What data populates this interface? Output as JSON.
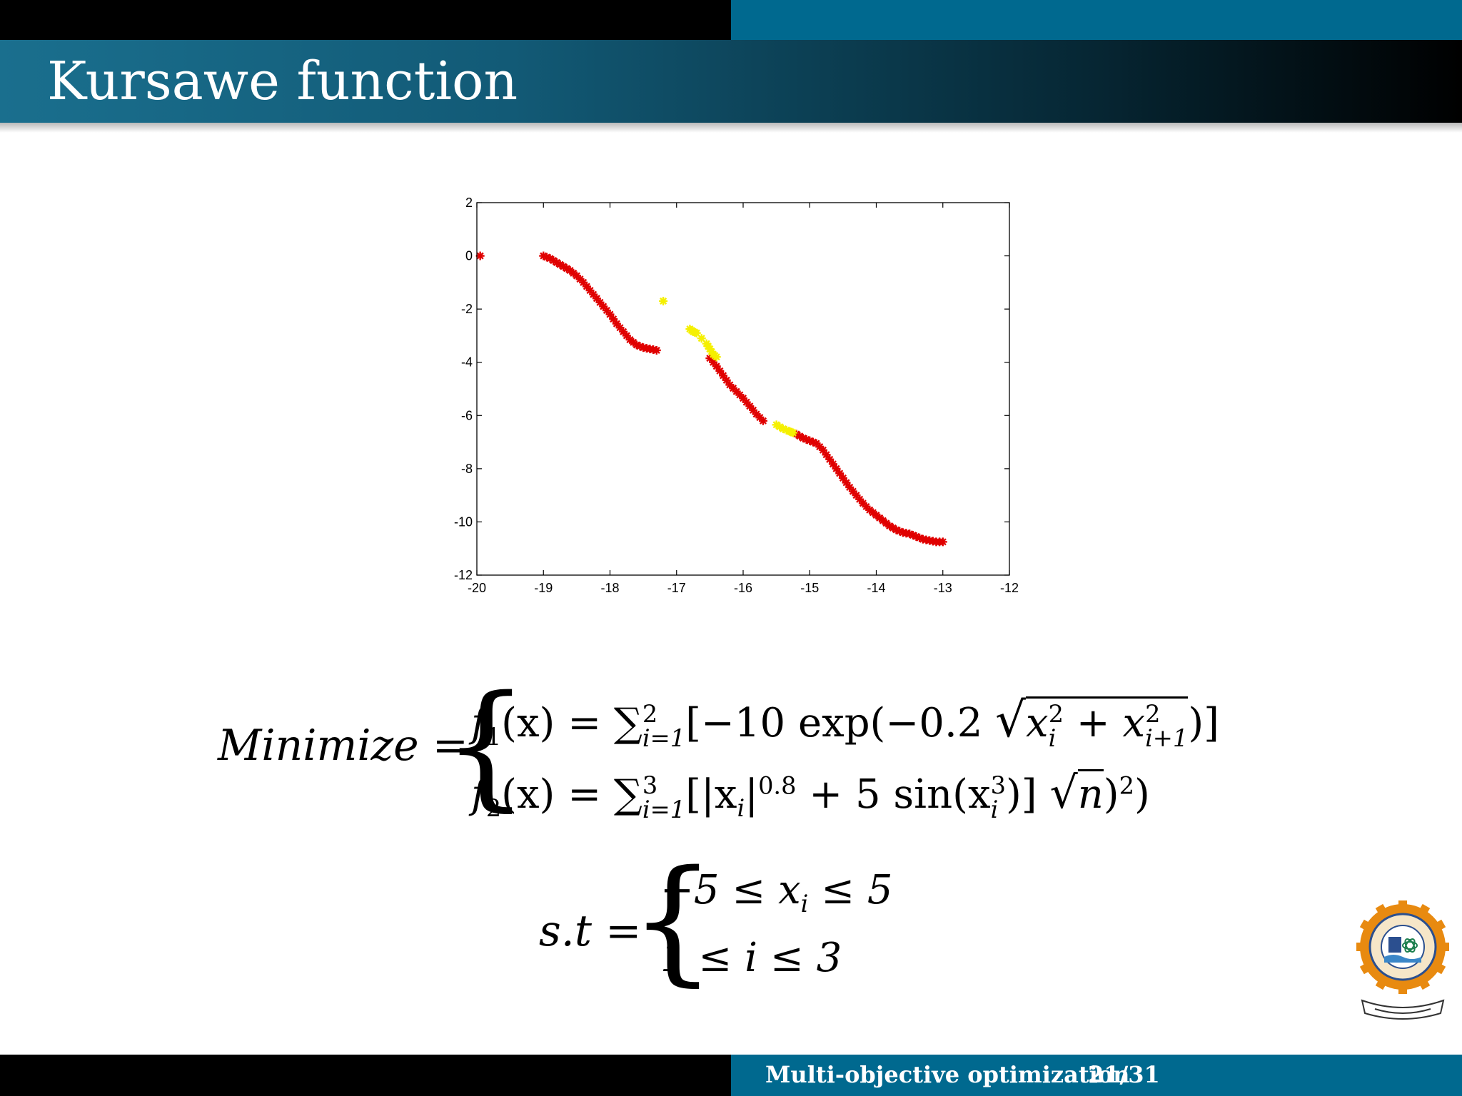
{
  "slide": {
    "title": "Kursawe function",
    "footer_title": "Multi-objective optimization",
    "footer_page": "21/31"
  },
  "colors": {
    "header_teal": "#00698f",
    "header_black": "#000000",
    "pareto_red": "#e00000",
    "pareto_yellow": "#f5f000"
  },
  "chart_data": {
    "type": "scatter",
    "title": "",
    "xlabel": "",
    "ylabel": "",
    "xlim": [
      -20,
      -12
    ],
    "ylim": [
      -12,
      2
    ],
    "xticks": [
      -20,
      -19,
      -18,
      -17,
      -16,
      -15,
      -14,
      -13,
      -12
    ],
    "yticks": [
      2,
      0,
      -2,
      -4,
      -6,
      -8,
      -10,
      -12
    ],
    "marker": "asterisk",
    "grid": false,
    "series": [
      {
        "color": "#e00000",
        "points": [
          [
            -19.95,
            0.0
          ],
          [
            -19.0,
            0.0
          ],
          [
            -18.9,
            -0.1
          ],
          [
            -18.8,
            -0.25
          ],
          [
            -18.7,
            -0.4
          ],
          [
            -18.6,
            -0.55
          ],
          [
            -18.5,
            -0.75
          ],
          [
            -18.4,
            -1.0
          ],
          [
            -18.3,
            -1.3
          ],
          [
            -18.2,
            -1.6
          ],
          [
            -18.1,
            -1.9
          ],
          [
            -18.0,
            -2.2
          ],
          [
            -17.9,
            -2.55
          ],
          [
            -17.8,
            -2.85
          ],
          [
            -17.7,
            -3.15
          ],
          [
            -17.6,
            -3.35
          ],
          [
            -17.5,
            -3.45
          ],
          [
            -17.4,
            -3.5
          ],
          [
            -17.3,
            -3.55
          ],
          [
            -16.5,
            -3.85
          ],
          [
            -16.4,
            -4.15
          ],
          [
            -16.3,
            -4.5
          ],
          [
            -16.2,
            -4.85
          ],
          [
            -16.1,
            -5.1
          ],
          [
            -16.0,
            -5.35
          ],
          [
            -15.9,
            -5.65
          ],
          [
            -15.8,
            -5.95
          ],
          [
            -15.7,
            -6.2
          ],
          [
            -15.2,
            -6.7
          ],
          [
            -15.1,
            -6.85
          ],
          [
            -15.0,
            -6.95
          ],
          [
            -14.9,
            -7.05
          ],
          [
            -14.8,
            -7.3
          ],
          [
            -14.7,
            -7.65
          ],
          [
            -14.6,
            -8.0
          ],
          [
            -14.5,
            -8.35
          ],
          [
            -14.4,
            -8.7
          ],
          [
            -14.3,
            -9.0
          ],
          [
            -14.2,
            -9.3
          ],
          [
            -14.1,
            -9.55
          ],
          [
            -14.0,
            -9.75
          ],
          [
            -13.9,
            -9.95
          ],
          [
            -13.8,
            -10.15
          ],
          [
            -13.7,
            -10.3
          ],
          [
            -13.6,
            -10.4
          ],
          [
            -13.5,
            -10.45
          ],
          [
            -13.4,
            -10.55
          ],
          [
            -13.3,
            -10.65
          ],
          [
            -13.2,
            -10.7
          ],
          [
            -13.1,
            -10.75
          ],
          [
            -13.0,
            -10.75
          ]
        ]
      },
      {
        "color": "#f5f000",
        "points": [
          [
            -17.2,
            -1.7
          ],
          [
            -16.8,
            -2.75
          ],
          [
            -16.75,
            -2.85
          ],
          [
            -16.7,
            -2.9
          ],
          [
            -16.55,
            -3.3
          ],
          [
            -16.5,
            -3.5
          ],
          [
            -16.45,
            -3.7
          ],
          [
            -16.4,
            -3.8
          ],
          [
            -15.5,
            -6.35
          ],
          [
            -15.4,
            -6.5
          ],
          [
            -15.3,
            -6.6
          ],
          [
            -15.25,
            -6.65
          ]
        ]
      }
    ]
  },
  "equations": {
    "minimize_label": "Minimize",
    "equals": "=",
    "f1": {
      "name": "f",
      "index": "1",
      "args": "(x) = ∑",
      "sum_lower": "i=1",
      "sum_upper": "2",
      "body_start": "[−10 exp(−0.2 ",
      "sqrt_a": "x",
      "sqrt_a_sup": "2",
      "sqrt_a_sub": "i",
      "sqrt_plus": " + x",
      "sqrt_b_sup": "2",
      "sqrt_b_sub": "i+1",
      "body_end": ")]"
    },
    "f2": {
      "name": "f",
      "index": "2",
      "args": "(x) = ∑",
      "sum_lower": "i=1",
      "sum_upper": "3",
      "body_start": "[|x",
      "abs_sub": "i",
      "abs_close": "|",
      "exp": "0.8",
      "mid": " + 5 sin(x",
      "sin_sup": "3",
      "sin_sub": "i",
      "mid_end": ")] ",
      "sqrt_n": "n",
      "end": ")",
      "end_sup": "2",
      "end_close": ")"
    },
    "st_label": "s.t",
    "c1": "−5 ≤ x",
    "c1_sub": "i",
    "c1_end": " ≤ 5",
    "c2": "1 ≤ i ≤ 3"
  },
  "logo": {
    "icon": "institute-emblem-icon"
  }
}
